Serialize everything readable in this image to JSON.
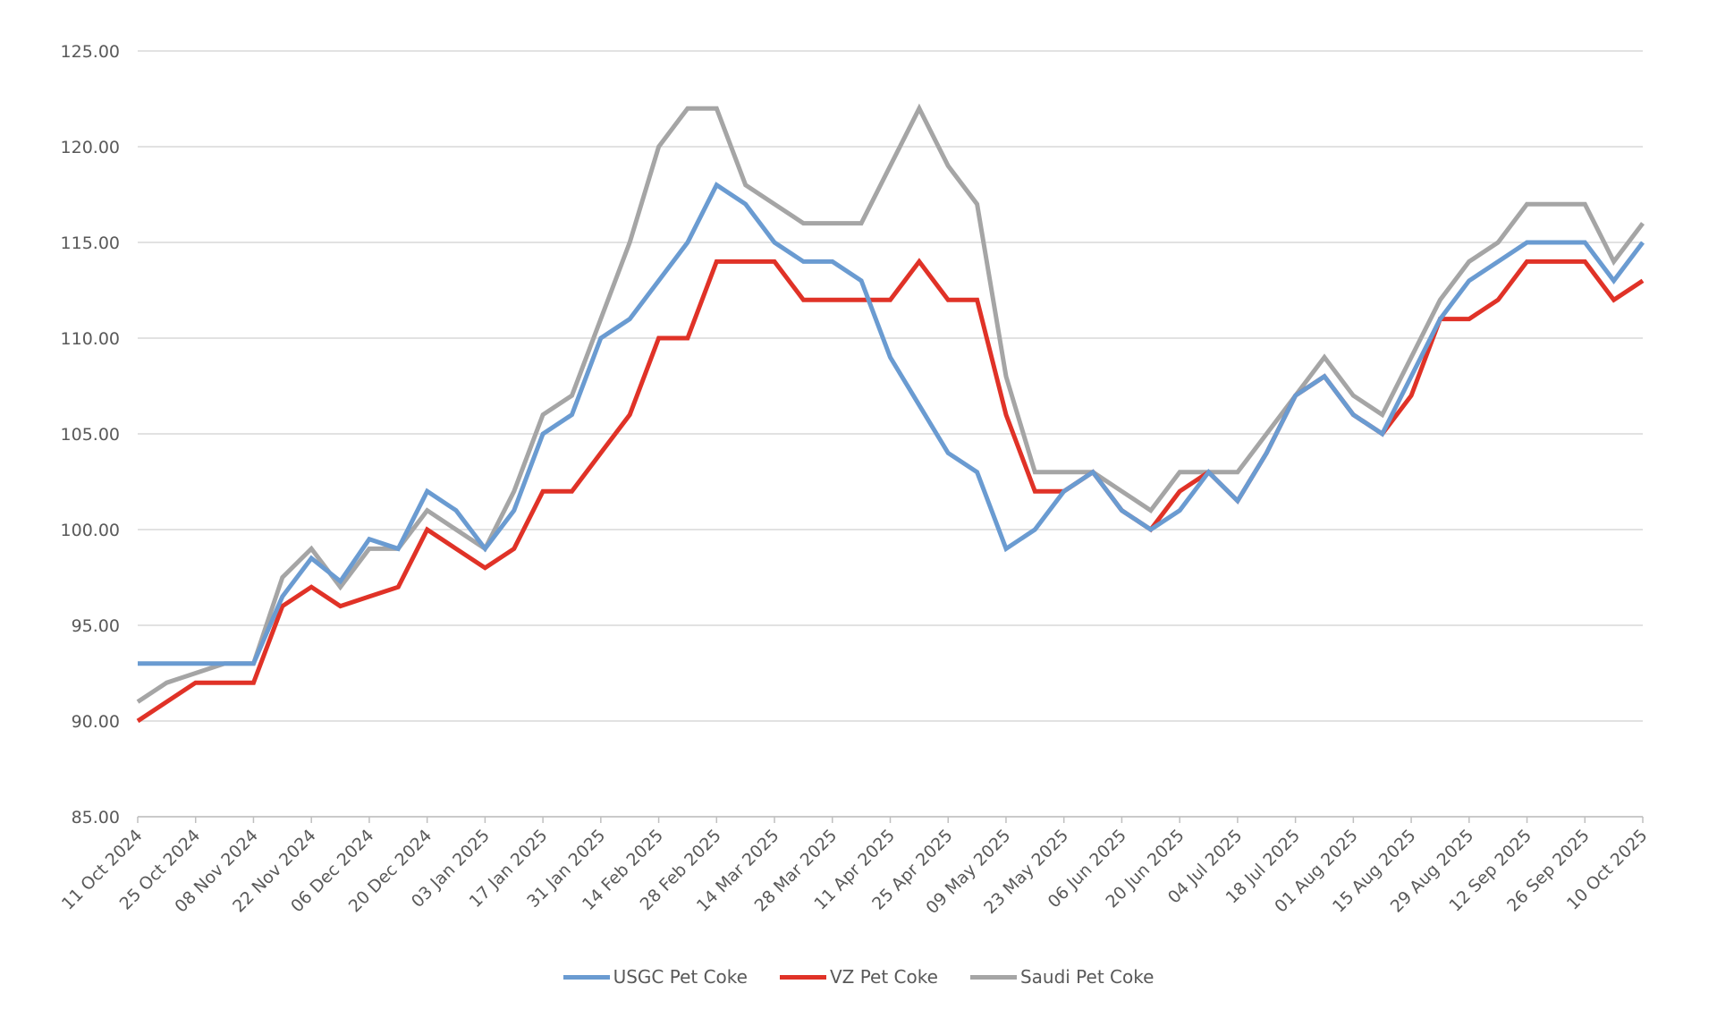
{
  "chart_data": {
    "type": "line",
    "title": "",
    "xlabel": "",
    "ylabel": "",
    "ylim": [
      85,
      125
    ],
    "yticks": [
      "85.00",
      "90.00",
      "95.00",
      "100.00",
      "105.00",
      "110.00",
      "115.00",
      "120.00",
      "125.00"
    ],
    "grid": true,
    "legend_position": "bottom",
    "x_tick_labels": [
      "11 Oct 2024",
      "25 Oct 2024",
      "08 Nov 2024",
      "22 Nov 2024",
      "06 Dec 2024",
      "20 Dec 2024",
      "03 Jan 2025",
      "17 Jan 2025",
      "31 Jan 2025",
      "14 Feb 2025",
      "28 Feb 2025",
      "14 Mar 2025",
      "28 Mar 2025",
      "11 Apr 2025",
      "25 Apr 2025",
      "09 May 2025",
      "23 May 2025",
      "06 Jun 2025",
      "20 Jun 2025",
      "04 Jul 2025",
      "18 Jul 2025",
      "01 Aug 2025",
      "15 Aug 2025",
      "29 Aug 2025",
      "12 Sep 2025",
      "26 Sep 2025",
      "10 Oct 2025"
    ],
    "x_interval": "weekly",
    "series": [
      {
        "name": "USGC Pet Coke",
        "color": "#6a9bd1",
        "values": [
          93,
          93,
          93,
          93,
          93,
          96.5,
          98.5,
          97.3,
          99.5,
          99,
          102,
          101,
          99,
          101,
          105,
          106,
          110,
          111,
          113,
          115,
          118,
          117,
          115,
          114,
          114,
          113,
          109,
          106.5,
          104,
          103,
          99,
          100,
          102,
          103,
          101,
          100,
          101,
          103,
          101.5,
          104,
          107,
          108,
          106,
          105,
          108,
          111,
          113,
          114,
          115,
          115,
          115,
          113,
          115
        ]
      },
      {
        "name": "VZ Pet Coke",
        "color": "#e03227",
        "values": [
          90,
          91,
          92,
          92,
          92,
          96,
          97,
          96,
          96.5,
          97,
          100,
          99,
          98,
          99,
          102,
          102,
          104,
          106,
          110,
          110,
          114,
          114,
          114,
          112,
          112,
          112,
          112,
          114,
          112,
          112,
          106,
          102,
          102,
          103,
          101,
          100,
          102,
          103,
          101.5,
          104,
          107,
          108,
          106,
          105,
          107,
          111,
          111,
          112,
          114,
          114,
          114,
          112,
          113
        ]
      },
      {
        "name": "Saudi Pet Coke",
        "color": "#a5a5a5",
        "values": [
          91,
          92,
          92.5,
          93,
          93,
          97.5,
          99,
          97,
          99,
          99,
          101,
          100,
          99,
          102,
          106,
          107,
          111,
          115,
          120,
          122,
          122,
          118,
          117,
          116,
          116,
          116,
          119,
          122,
          119,
          117,
          108,
          103,
          103,
          103,
          102,
          101,
          103,
          103,
          103,
          105,
          107,
          109,
          107,
          106,
          109,
          112,
          114,
          115,
          117,
          117,
          117,
          114,
          116
        ]
      }
    ]
  }
}
